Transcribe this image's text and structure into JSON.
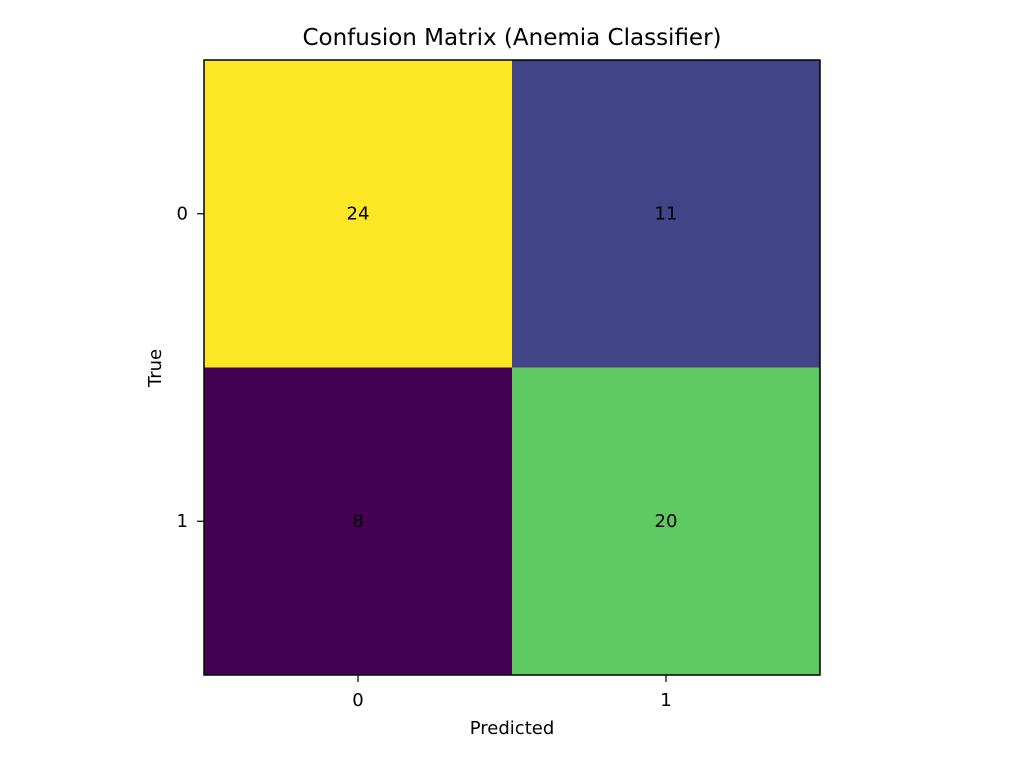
{
  "chart_data": {
    "type": "heatmap",
    "title": "Confusion Matrix (Anemia Classifier)",
    "xlabel": "Predicted",
    "ylabel": "True",
    "x_categories": [
      "0",
      "1"
    ],
    "y_categories": [
      "0",
      "1"
    ],
    "values": [
      [
        24,
        11
      ],
      [
        8,
        20
      ]
    ],
    "colormap": "viridis",
    "grid": false,
    "cell_colors": [
      [
        "#fde725",
        "#414487"
      ],
      [
        "#440154",
        "#5ec962"
      ]
    ]
  }
}
